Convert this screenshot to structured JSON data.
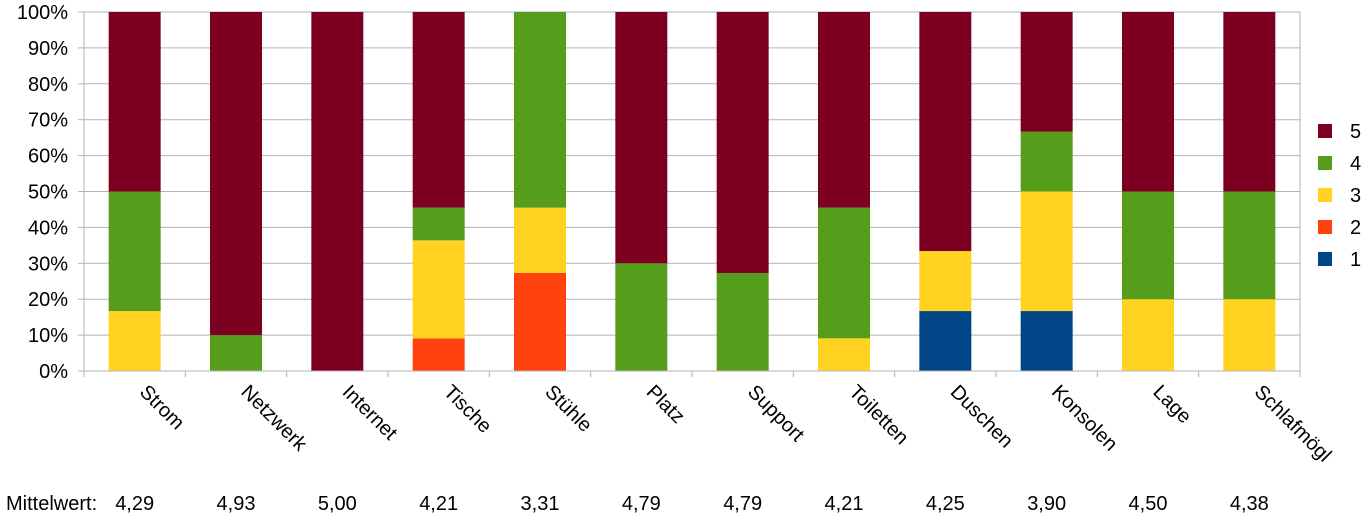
{
  "chart_data": {
    "type": "bar",
    "stacked": true,
    "percent": true,
    "title": "",
    "xlabel": "",
    "ylabel": "",
    "ylim": [
      0,
      100
    ],
    "y_ticks": [
      "0%",
      "10%",
      "20%",
      "30%",
      "40%",
      "50%",
      "60%",
      "70%",
      "80%",
      "90%",
      "100%"
    ],
    "grid": true,
    "legend_position": "right",
    "categories": [
      "Strom",
      "Netzwerk",
      "Internet",
      "Tische",
      "Stühle",
      "Platz",
      "Support",
      "Toiletten",
      "Duschen",
      "Konsolen",
      "Lage",
      "Schlafmögl"
    ],
    "series": [
      {
        "name": "1",
        "color": "#004586",
        "values": [
          0,
          0,
          0,
          0,
          0,
          0,
          0,
          0,
          16.7,
          16.7,
          0,
          0
        ]
      },
      {
        "name": "2",
        "color": "#ff420e",
        "values": [
          0,
          0,
          0,
          9.1,
          27.3,
          0,
          0,
          0,
          0,
          0,
          0,
          0
        ]
      },
      {
        "name": "3",
        "color": "#ffd320",
        "values": [
          16.7,
          0,
          0,
          27.3,
          18.2,
          0,
          0,
          9.1,
          16.7,
          33.3,
          20,
          20
        ]
      },
      {
        "name": "4",
        "color": "#579d1c",
        "values": [
          33.3,
          10,
          0,
          9.1,
          54.5,
          30,
          27.3,
          36.4,
          0,
          16.7,
          30,
          30
        ]
      },
      {
        "name": "5",
        "color": "#7e0021",
        "values": [
          50,
          90,
          100,
          54.5,
          0,
          70,
          72.7,
          54.5,
          66.6,
          33.3,
          50,
          50
        ]
      }
    ],
    "mean_label": "Mittelwert:",
    "means": [
      "4,29",
      "4,93",
      "5,00",
      "4,21",
      "3,31",
      "4,79",
      "4,79",
      "4,21",
      "4,25",
      "3,90",
      "4,50",
      "4,38"
    ]
  }
}
